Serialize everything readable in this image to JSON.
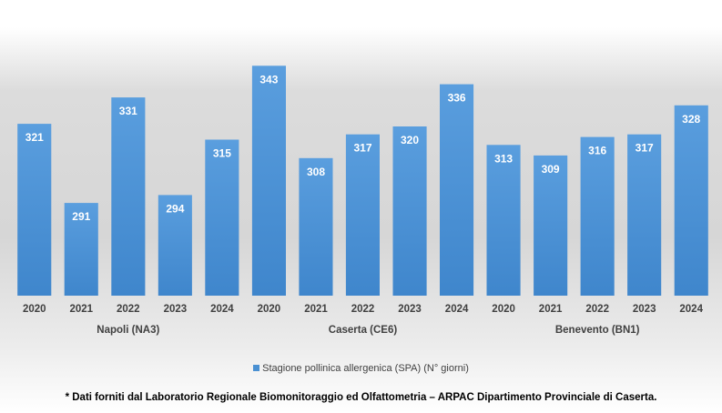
{
  "chart_data": {
    "type": "bar",
    "groups": [
      {
        "name": "Napoli (NA3)",
        "categories": [
          "2020",
          "2021",
          "2022",
          "2023",
          "2024"
        ],
        "values": [
          321,
          291,
          331,
          294,
          315
        ]
      },
      {
        "name": "Caserta (CE6)",
        "categories": [
          "2020",
          "2021",
          "2022",
          "2023",
          "2024"
        ],
        "values": [
          343,
          308,
          317,
          320,
          336
        ]
      },
      {
        "name": "Benevento (BN1)",
        "categories": [
          "2020",
          "2021",
          "2022",
          "2023",
          "2024"
        ],
        "values": [
          313,
          309,
          316,
          317,
          328
        ]
      }
    ],
    "series": [
      {
        "name": "Stagione pollinica allergenica (SPA) (N° giorni)"
      }
    ],
    "ylim": [
      260,
      360
    ],
    "grid": false,
    "legend_position": "bottom",
    "data_labels": true,
    "color": "#4a90d2"
  },
  "legend": {
    "label": "Stagione pollinica allergenica (SPA) (N° giorni)"
  },
  "footnote": "* Dati forniti dal Laboratorio Regionale Biomonitoraggio ed Olfattometria – ARPAC Dipartimento Provinciale di Caserta."
}
